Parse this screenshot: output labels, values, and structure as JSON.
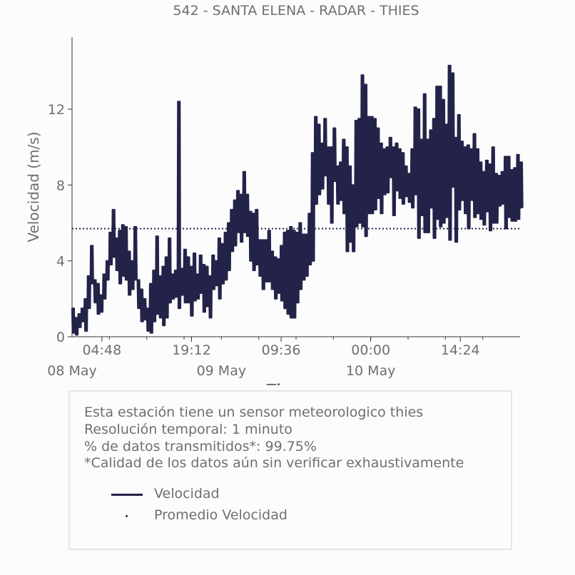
{
  "chart_data": {
    "type": "line",
    "title": "542 - SANTA ELENA - RADAR - THIES",
    "xlabel": "Tiempo",
    "ylabel": "Velocidad (m/s)",
    "ylim": [
      0,
      15.8
    ],
    "yticks": [
      "0",
      "4",
      "8",
      "12"
    ],
    "ytick_values": [
      0,
      4,
      8,
      12
    ],
    "xticks": [
      "04:48",
      "19:12",
      "09:36",
      "00:00",
      "14:24"
    ],
    "xtick_hours": [
      28.8,
      43.2,
      57.6,
      72.0,
      86.4
    ],
    "date_labels": [
      "08 May",
      "09 May",
      "10 May"
    ],
    "date_label_hours": [
      24,
      48,
      72
    ],
    "xlim_hours": [
      24,
      96
    ],
    "grid": false,
    "series": [
      {
        "name": "Velocidad",
        "color": "#23234a",
        "x_hours": [
          24.0,
          24.5,
          25.0,
          25.5,
          26.0,
          26.5,
          27.0,
          27.5,
          28.0,
          28.5,
          29.0,
          29.5,
          30.0,
          30.5,
          31.0,
          31.5,
          32.0,
          32.5,
          33.0,
          33.5,
          34.0,
          34.5,
          35.0,
          35.5,
          36.0,
          36.5,
          37.0,
          37.5,
          38.0,
          38.5,
          39.0,
          39.5,
          40.0,
          40.5,
          41.0,
          41.5,
          42.0,
          42.5,
          43.0,
          43.5,
          44.0,
          44.5,
          45.0,
          45.5,
          46.0,
          46.5,
          47.0,
          47.5,
          48.0,
          48.5,
          49.0,
          49.5,
          50.0,
          50.5,
          51.0,
          51.5,
          52.0,
          52.5,
          53.0,
          53.5,
          54.0,
          54.5,
          55.0,
          55.5,
          56.0,
          56.5,
          57.0,
          57.5,
          58.0,
          58.5,
          59.0,
          59.5,
          60.0,
          60.5,
          61.0,
          61.5,
          62.0,
          62.5,
          63.0,
          63.5,
          64.0,
          64.5,
          65.0,
          65.5,
          66.0,
          66.5,
          67.0,
          67.5,
          68.0,
          68.5,
          69.0,
          69.5,
          70.0,
          70.5,
          71.0,
          71.5,
          72.0,
          72.5,
          73.0,
          73.5,
          74.0,
          74.5,
          75.0,
          75.5,
          76.0,
          76.5,
          77.0,
          77.5,
          78.0,
          78.5,
          79.0,
          79.5,
          80.0,
          80.5,
          81.0,
          81.5,
          82.0,
          82.5,
          83.0,
          83.5,
          84.0,
          84.5,
          85.0,
          85.5,
          86.0,
          86.5,
          87.0,
          87.5,
          88.0,
          88.5,
          89.0,
          89.5,
          90.0,
          90.5,
          91.0,
          91.5,
          92.0,
          92.5,
          93.0,
          93.5,
          94.0,
          94.5,
          95.0,
          95.5,
          96.0
        ],
        "y_min": [
          0.2,
          0.1,
          0.5,
          0.8,
          0.3,
          1.5,
          2.8,
          1.8,
          1.2,
          1.3,
          2.0,
          3.0,
          3.8,
          4.2,
          3.5,
          2.8,
          3.2,
          3.0,
          2.2,
          2.5,
          3.0,
          1.5,
          0.8,
          0.9,
          0.3,
          0.2,
          0.8,
          1.2,
          1.0,
          0.6,
          1.0,
          1.8,
          2.0,
          2.1,
          1.5,
          2.2,
          1.8,
          1.8,
          1.1,
          1.9,
          2.0,
          2.3,
          1.3,
          1.6,
          1.0,
          2.5,
          2.7,
          2.0,
          2.8,
          3.0,
          3.5,
          4.5,
          4.8,
          5.5,
          5.0,
          5.5,
          5.3,
          4.0,
          3.5,
          3.8,
          3.2,
          2.5,
          2.9,
          2.9,
          2.5,
          2.0,
          2.3,
          1.9,
          1.5,
          1.2,
          1.0,
          1.0,
          1.8,
          2.5,
          3.0,
          3.2,
          3.8,
          4.0,
          7.0,
          7.5,
          7.8,
          8.5,
          7.0,
          6.0,
          8.2,
          7.0,
          7.2,
          6.5,
          4.5,
          5.0,
          4.5,
          5.8,
          6.0,
          5.8,
          5.3,
          6.5,
          6.5,
          6.7,
          7.3,
          6.5,
          7.5,
          7.6,
          8.4,
          6.4,
          7.7,
          7.3,
          7.0,
          7.4,
          7.1,
          6.8,
          7.5,
          5.2,
          6.4,
          5.5,
          5.5,
          6.8,
          5.2,
          6.2,
          5.8,
          6.0,
          6.3,
          5.1,
          7.9,
          5.0,
          6.7,
          7.2,
          6.5,
          5.7,
          7.2,
          6.3,
          6.5,
          6.2,
          5.9,
          6.6,
          5.6,
          6.0,
          6.0,
          6.9,
          7.0,
          5.7,
          6.3,
          6.1,
          6.1,
          6.2,
          6.8
        ],
        "y_max": [
          1.5,
          1.0,
          1.2,
          1.5,
          2.0,
          3.2,
          4.8,
          3.0,
          2.8,
          2.2,
          3.3,
          4.0,
          5.5,
          6.7,
          5.2,
          5.6,
          5.9,
          5.8,
          4.5,
          4.0,
          5.8,
          3.0,
          2.5,
          2.0,
          1.5,
          2.8,
          3.5,
          5.3,
          3.2,
          3.7,
          4.2,
          5.2,
          3.3,
          3.5,
          12.4,
          3.6,
          4.6,
          4.2,
          3.7,
          4.4,
          3.3,
          4.3,
          3.8,
          3.7,
          3.2,
          4.3,
          4.0,
          5.2,
          4.9,
          5.5,
          6.0,
          6.7,
          7.2,
          7.7,
          7.5,
          8.7,
          7.5,
          6.6,
          6.5,
          6.7,
          5.1,
          5.1,
          5.1,
          5.6,
          4.5,
          4.2,
          4.1,
          4.8,
          5.5,
          5.6,
          5.8,
          5.6,
          5.5,
          6.0,
          5.4,
          5.4,
          6.5,
          9.7,
          11.6,
          11.2,
          10.2,
          11.5,
          10.0,
          10.0,
          11.0,
          9.0,
          9.2,
          10.4,
          10.0,
          9.0,
          8.0,
          11.4,
          11.5,
          13.8,
          13.3,
          11.6,
          11.6,
          11.5,
          11.0,
          10.2,
          9.9,
          10.0,
          10.5,
          10.0,
          10.2,
          9.9,
          9.7,
          9.0,
          8.6,
          9.9,
          12.1,
          12.0,
          10.4,
          12.8,
          10.4,
          10.9,
          11.5,
          13.2,
          13.2,
          12.5,
          11.2,
          14.3,
          13.9,
          10.5,
          11.7,
          10.3,
          10.0,
          10.1,
          9.9,
          10.7,
          9.9,
          9.2,
          8.7,
          9.3,
          9.1,
          10.0,
          8.6,
          8.5,
          8.7,
          9.5,
          9.5,
          8.8,
          8.9,
          9.6,
          9.2
        ]
      },
      {
        "name": "Promedio Velocidad",
        "color": "#23234a",
        "style": "dotted",
        "value": 5.7
      }
    ]
  },
  "info": {
    "lines": [
      "Esta estación tiene un sensor meteorologico thies",
      "Resolución temporal: 1 minuto",
      "% de datos transmitidos*: 99.75%",
      "*Calidad de los datos aún sin verificar exhaustivamente"
    ]
  },
  "legend": {
    "items": [
      {
        "label": "Velocidad",
        "marker": "line"
      },
      {
        "label": "Promedio Velocidad",
        "marker": "dot"
      }
    ]
  }
}
